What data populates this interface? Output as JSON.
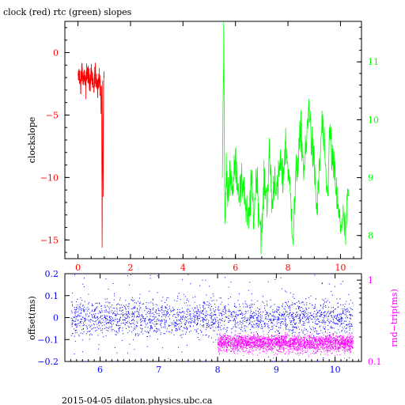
{
  "header": {
    "title": "clock (red) rtc (green) slopes"
  },
  "footer": {
    "caption": "2015-04-05 dilaton.physics.ubc.ca"
  },
  "colors": {
    "axis": "#000000",
    "clock": "#ff0000",
    "rtc": "#00ff00",
    "offset": "#0000ff",
    "rndtrip": "#ff00ff"
  },
  "chart_data": [
    {
      "type": "line",
      "title": "clock (red) rtc (green) slopes",
      "xlim": [
        -0.5,
        10.8
      ],
      "x_ticks": [
        "0",
        "2",
        "4",
        "6",
        "8",
        "10"
      ],
      "ylabel": "clockslope",
      "ylim": [
        -16.5,
        2.5
      ],
      "y_ticks": [
        "0",
        "−5",
        "−10",
        "−15"
      ],
      "y2lim": [
        7.6,
        11.7
      ],
      "y2_ticks": [
        "8",
        "9",
        "10",
        "11"
      ],
      "grid": false,
      "series": [
        {
          "name": "clock",
          "color": "#ff0000",
          "axis": "left",
          "x": [
            0.0,
            0.05,
            0.1,
            0.15,
            0.2,
            0.25,
            0.3,
            0.35,
            0.4,
            0.45,
            0.5,
            0.55,
            0.6,
            0.65,
            0.7,
            0.75,
            0.8,
            0.85,
            0.88,
            0.9,
            0.92,
            0.94,
            0.96,
            0.98,
            1.0
          ],
          "y": [
            -2.2,
            -1.5,
            -3.0,
            -1.0,
            -2.5,
            -1.8,
            -2.8,
            -1.2,
            -2.0,
            -2.6,
            -1.6,
            -2.3,
            -3.2,
            -1.4,
            -2.1,
            -2.7,
            -1.9,
            -2.4,
            -5.0,
            -3.0,
            -16.0,
            -2.5,
            -11.5,
            -2.2,
            -2.0
          ]
        },
        {
          "name": "rtc",
          "color": "#00ff00",
          "axis": "right",
          "x": [
            5.5,
            5.55,
            5.6,
            5.65,
            5.7,
            5.8,
            5.9,
            6.0,
            6.1,
            6.2,
            6.3,
            6.4,
            6.5,
            6.6,
            6.7,
            6.8,
            6.9,
            7.0,
            7.1,
            7.2,
            7.3,
            7.4,
            7.5,
            7.6,
            7.7,
            7.8,
            7.9,
            8.0,
            8.1,
            8.2,
            8.3,
            8.4,
            8.5,
            8.6,
            8.7,
            8.8,
            8.9,
            9.0,
            9.1,
            9.2,
            9.3,
            9.4,
            9.5,
            9.6,
            9.7,
            9.8,
            9.9,
            10.0,
            10.1,
            10.2,
            10.3
          ],
          "y": [
            9.0,
            11.5,
            8.0,
            9.2,
            8.6,
            9.1,
            8.8,
            9.3,
            8.9,
            8.7,
            9.0,
            8.4,
            8.2,
            8.9,
            8.3,
            9.1,
            8.4,
            8.0,
            9.0,
            8.6,
            9.4,
            8.5,
            9.1,
            8.7,
            9.3,
            8.9,
            9.6,
            9.2,
            8.6,
            8.0,
            9.0,
            9.4,
            9.8,
            9.1,
            9.5,
            10.3,
            9.6,
            9.2,
            8.4,
            9.1,
            10.0,
            9.3,
            8.7,
            9.8,
            9.2,
            9.0,
            8.4,
            8.2,
            8.3,
            8.0,
            8.8
          ]
        }
      ]
    },
    {
      "type": "scatter",
      "ylabel": "offset(ms)",
      "y2label": "rnd−trip(ms)",
      "xlim": [
        5.4,
        10.45
      ],
      "x_ticks": [
        "6",
        "7",
        "8",
        "9",
        "10"
      ],
      "ylim": [
        -0.2,
        0.2
      ],
      "y_ticks": [
        "0.2",
        "0.1",
        "0",
        "−0.1",
        "−0.2"
      ],
      "y2_scale": "log",
      "y2lim": [
        0.1,
        1.2
      ],
      "y2_ticks": [
        "1",
        "0.1"
      ],
      "grid": false,
      "series": [
        {
          "name": "offset",
          "color": "#0000ff",
          "axis": "left",
          "x_range": [
            5.5,
            10.3
          ],
          "center": 0.0,
          "spread": 0.04,
          "outlier_fraction": 0.08
        },
        {
          "name": "rnd-trip",
          "color": "#ff00ff",
          "axis": "right",
          "x_range": [
            8.0,
            10.3
          ],
          "center": 0.17,
          "spread": 0.02
        }
      ]
    }
  ]
}
